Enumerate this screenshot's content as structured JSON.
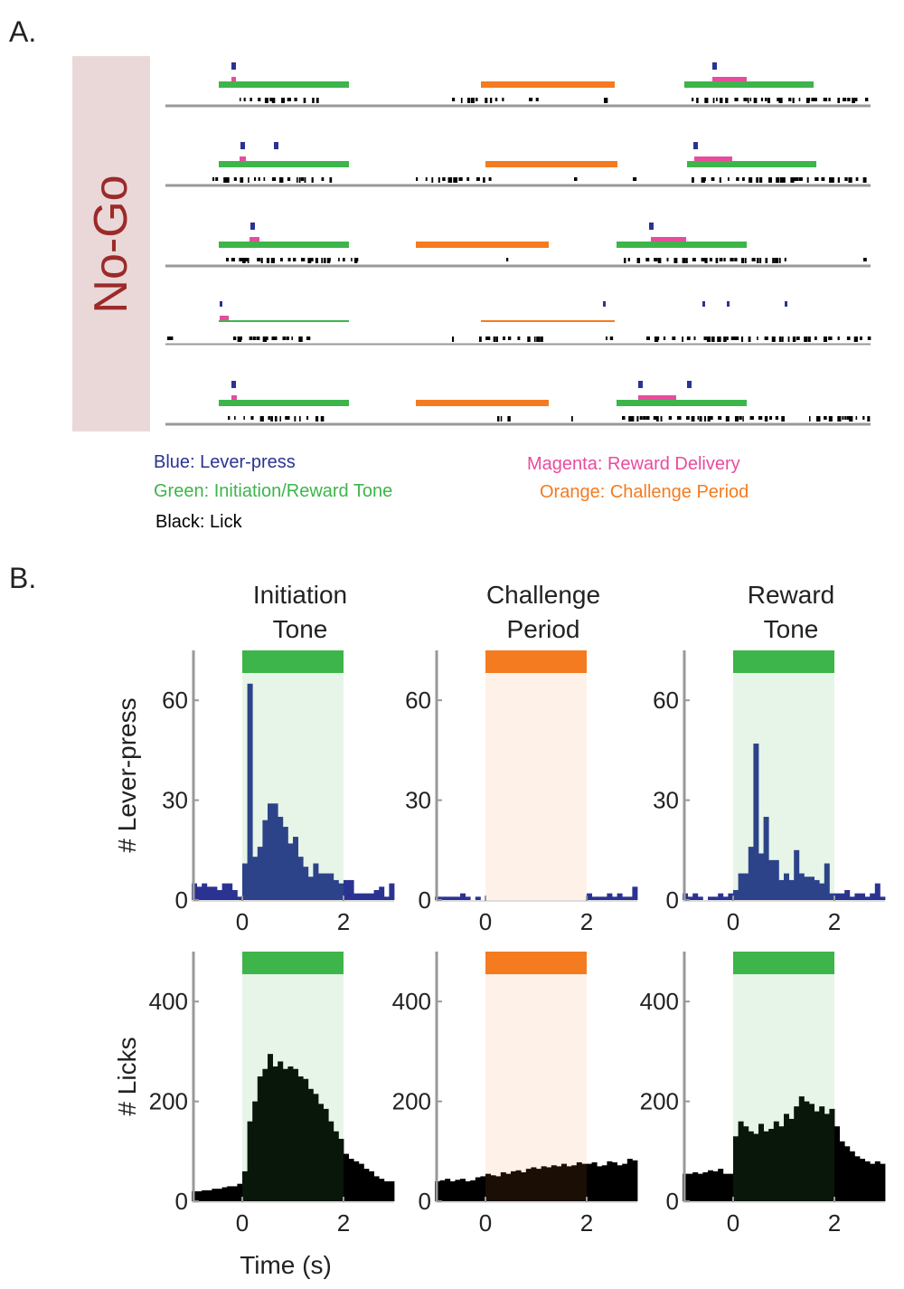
{
  "panel_a": {
    "label": "A.",
    "condition": "No-Go",
    "legend": {
      "blue": "Blue: Lever-press",
      "green": "Green: Initiation/Reward Tone",
      "black": "Black: Lick",
      "magenta": "Magenta: Reward Delivery",
      "orange": "Orange: Challenge Period"
    }
  },
  "panel_b": {
    "label": "B."
  },
  "chart_data": [
    {
      "type": "histogram",
      "title_lines": [
        "Initiation",
        "Tone"
      ],
      "ylabel": "# Lever-press",
      "color": "#2b3392",
      "event": [
        0,
        2
      ],
      "event_color": "#3db54a",
      "shade_color": "rgba(61,181,74,0.13)",
      "bins": [
        -1,
        -0.9,
        -0.8,
        -0.7,
        -0.6,
        -0.5,
        -0.4,
        -0.3,
        -0.2,
        -0.1,
        0,
        0.1,
        0.2,
        0.3,
        0.4,
        0.5,
        0.6,
        0.7,
        0.8,
        0.9,
        1,
        1.1,
        1.2,
        1.3,
        1.4,
        1.5,
        1.6,
        1.7,
        1.8,
        1.9,
        2,
        2.1,
        2.2,
        2.3,
        2.4,
        2.5,
        2.6,
        2.7,
        2.8,
        2.9,
        3
      ],
      "values": [
        5,
        4,
        5,
        4,
        4,
        3,
        5,
        5,
        3,
        1,
        11,
        65,
        13,
        16,
        24,
        29,
        29,
        25,
        22,
        17,
        19,
        13,
        10,
        7,
        11,
        8,
        8,
        8,
        6,
        5,
        6,
        6,
        2,
        2,
        2,
        2,
        3,
        4,
        1,
        5
      ],
      "xlim": [
        -1,
        3
      ],
      "xticks": [
        0,
        2
      ],
      "ylim": [
        0,
        75
      ],
      "yticks": [
        0,
        30,
        60
      ]
    },
    {
      "type": "histogram",
      "title_lines": [
        "Challenge",
        "Period"
      ],
      "color": "#2b3392",
      "event": [
        0,
        2
      ],
      "event_color": "#f47b20",
      "shade_color": "rgba(244,123,32,0.11)",
      "bins": [
        -1,
        -0.9,
        -0.8,
        -0.7,
        -0.6,
        -0.5,
        -0.4,
        -0.3,
        -0.2,
        -0.1,
        0,
        0.1,
        0.2,
        0.3,
        0.4,
        0.5,
        0.6,
        0.7,
        0.8,
        0.9,
        1,
        1.1,
        1.2,
        1.3,
        1.4,
        1.5,
        1.6,
        1.7,
        1.8,
        1.9,
        2,
        2.1,
        2.2,
        2.3,
        2.4,
        2.5,
        2.6,
        2.7,
        2.8,
        2.9,
        3
      ],
      "values": [
        1,
        1,
        1,
        1,
        1,
        2,
        1,
        0,
        1,
        0,
        0,
        0,
        0,
        0,
        0,
        0,
        0,
        0,
        0,
        0,
        0,
        0,
        0,
        0,
        0,
        0,
        0,
        0,
        0,
        0,
        2,
        1,
        1,
        1,
        2,
        1,
        2,
        1,
        1,
        4
      ],
      "xlim": [
        -1,
        3
      ],
      "xticks": [
        0,
        2
      ],
      "ylim": [
        0,
        75
      ],
      "yticks": [
        0,
        30,
        60
      ]
    },
    {
      "type": "histogram",
      "title_lines": [
        "Reward",
        "Tone"
      ],
      "color": "#2b3392",
      "event": [
        0,
        2
      ],
      "event_color": "#3db54a",
      "shade_color": "rgba(61,181,74,0.13)",
      "bins": [
        -1,
        -0.9,
        -0.8,
        -0.7,
        -0.6,
        -0.5,
        -0.4,
        -0.3,
        -0.2,
        -0.1,
        0,
        0.1,
        0.2,
        0.3,
        0.4,
        0.5,
        0.6,
        0.7,
        0.8,
        0.9,
        1,
        1.1,
        1.2,
        1.3,
        1.4,
        1.5,
        1.6,
        1.7,
        1.8,
        1.9,
        2,
        2.1,
        2.2,
        2.3,
        2.4,
        2.5,
        2.6,
        2.7,
        2.8,
        2.9,
        3
      ],
      "values": [
        2,
        1,
        2,
        1,
        0,
        1,
        1,
        2,
        1,
        2,
        3,
        8,
        8,
        16,
        47,
        14,
        25,
        12,
        12,
        6,
        8,
        6,
        15,
        8,
        7,
        7,
        6,
        5,
        11,
        2,
        2,
        2,
        3,
        1,
        2,
        2,
        1,
        2,
        5,
        1
      ],
      "xlim": [
        -1,
        3
      ],
      "xticks": [
        0,
        2
      ],
      "ylim": [
        0,
        75
      ],
      "yticks": [
        0,
        30,
        60
      ]
    },
    {
      "type": "histogram",
      "ylabel": "# Licks",
      "xlabel": "Time (s)",
      "color": "#000000",
      "event": [
        0,
        2
      ],
      "event_color": "#3db54a",
      "shade_color": "rgba(61,181,74,0.13)",
      "bins": [
        -1,
        -0.9,
        -0.8,
        -0.7,
        -0.6,
        -0.5,
        -0.4,
        -0.3,
        -0.2,
        -0.1,
        0,
        0.1,
        0.2,
        0.3,
        0.4,
        0.5,
        0.6,
        0.7,
        0.8,
        0.9,
        1,
        1.1,
        1.2,
        1.3,
        1.4,
        1.5,
        1.6,
        1.7,
        1.8,
        1.9,
        2,
        2.1,
        2.2,
        2.3,
        2.4,
        2.5,
        2.6,
        2.7,
        2.8,
        2.9,
        3
      ],
      "values": [
        20,
        20,
        22,
        22,
        25,
        25,
        28,
        30,
        30,
        35,
        60,
        160,
        200,
        250,
        265,
        295,
        270,
        280,
        265,
        270,
        265,
        250,
        245,
        225,
        215,
        195,
        185,
        160,
        140,
        125,
        95,
        85,
        80,
        75,
        65,
        60,
        50,
        45,
        40,
        40
      ],
      "xlim": [
        -1,
        3
      ],
      "xticks": [
        0,
        2
      ],
      "ylim": [
        0,
        500
      ],
      "yticks": [
        0,
        200,
        400
      ]
    },
    {
      "type": "histogram",
      "color": "#000000",
      "event": [
        0,
        2
      ],
      "event_color": "#f47b20",
      "shade_color": "rgba(244,123,32,0.11)",
      "bins": [
        -1,
        -0.9,
        -0.8,
        -0.7,
        -0.6,
        -0.5,
        -0.4,
        -0.3,
        -0.2,
        -0.1,
        0,
        0.1,
        0.2,
        0.3,
        0.4,
        0.5,
        0.6,
        0.7,
        0.8,
        0.9,
        1,
        1.1,
        1.2,
        1.3,
        1.4,
        1.5,
        1.6,
        1.7,
        1.8,
        1.9,
        2,
        2.1,
        2.2,
        2.3,
        2.4,
        2.5,
        2.6,
        2.7,
        2.8,
        2.9,
        3
      ],
      "values": [
        40,
        42,
        45,
        40,
        43,
        45,
        40,
        42,
        48,
        50,
        55,
        52,
        50,
        58,
        55,
        60,
        62,
        58,
        65,
        68,
        65,
        70,
        68,
        72,
        70,
        75,
        70,
        72,
        78,
        75,
        75,
        78,
        70,
        72,
        80,
        78,
        72,
        75,
        85,
        82
      ],
      "xlim": [
        -1,
        3
      ],
      "xticks": [
        0,
        2
      ],
      "ylim": [
        0,
        500
      ],
      "yticks": [
        0,
        200,
        400
      ]
    },
    {
      "type": "histogram",
      "color": "#000000",
      "event": [
        0,
        2
      ],
      "event_color": "#3db54a",
      "shade_color": "rgba(61,181,74,0.13)",
      "bins": [
        -1,
        -0.9,
        -0.8,
        -0.7,
        -0.6,
        -0.5,
        -0.4,
        -0.3,
        -0.2,
        -0.1,
        0,
        0.1,
        0.2,
        0.3,
        0.4,
        0.5,
        0.6,
        0.7,
        0.8,
        0.9,
        1,
        1.1,
        1.2,
        1.3,
        1.4,
        1.5,
        1.6,
        1.7,
        1.8,
        1.9,
        2,
        2.1,
        2.2,
        2.3,
        2.4,
        2.5,
        2.6,
        2.7,
        2.8,
        2.9,
        3
      ],
      "values": [
        55,
        55,
        58,
        55,
        58,
        62,
        60,
        65,
        55,
        55,
        130,
        160,
        150,
        140,
        135,
        155,
        140,
        145,
        160,
        150,
        175,
        165,
        190,
        210,
        200,
        195,
        180,
        190,
        175,
        185,
        150,
        120,
        110,
        100,
        90,
        85,
        80,
        75,
        80,
        75
      ],
      "xlim": [
        -1,
        3
      ],
      "xticks": [
        0,
        2
      ],
      "ylim": [
        0,
        500
      ],
      "yticks": [
        0,
        200,
        400
      ]
    }
  ]
}
